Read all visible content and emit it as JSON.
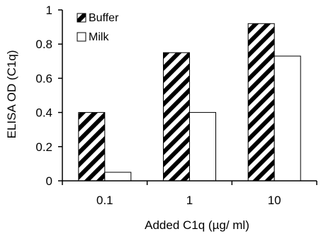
{
  "chart_data": {
    "type": "bar",
    "categories": [
      "0.1",
      "1",
      "10"
    ],
    "series": [
      {
        "name": "Buffer",
        "values": [
          0.4,
          0.75,
          0.92
        ],
        "fill": "hatched"
      },
      {
        "name": "Milk",
        "values": [
          0.05,
          0.4,
          0.73
        ],
        "fill": "white"
      }
    ],
    "xlabel": "Added C1q (µg/ ml)",
    "ylabel": "ELISA OD (C1q)",
    "ylim": [
      0,
      1
    ],
    "yticks": [
      "0",
      "0.2",
      "0.4",
      "0.6",
      "0.8",
      "1"
    ],
    "grid": false,
    "legend": "top-left",
    "colors": {
      "axis": "#000000",
      "bar_stroke": "#000000",
      "hatch": "#000000",
      "background": "#ffffff"
    }
  }
}
